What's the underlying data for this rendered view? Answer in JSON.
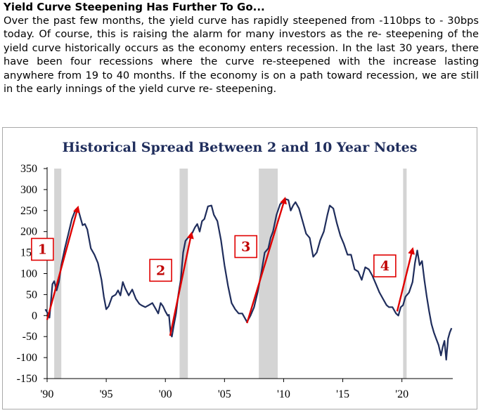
{
  "article": {
    "headline": "Yield Curve Steepening Has Further To Go...",
    "lines": [
      "Over the past few months, the yield curve has rapidly steepened from -110bps to -",
      "30bps today. Of course, this is raising the alarm for many investors as the re-",
      "steepening of the yield curve historically occurs as the economy enters recession.",
      "In the last 30 years, there have been four recessions where the curve re-steepened",
      "with the increase lasting anywhere from 19 to 40 months. If the economy is on a",
      "path toward recession, we are still in the early innings of the yield curve re-",
      "steepening."
    ]
  },
  "chart_data": {
    "type": "line",
    "title": "Historical Spread Between 2 and 10 Year Notes",
    "xlabel": "",
    "ylabel": "",
    "xlim": [
      1990,
      2024.3
    ],
    "ylim": [
      -150,
      350
    ],
    "x_tick_labels": [
      "'90",
      "'95",
      "'00",
      "'05",
      "'10",
      "'15",
      "'20"
    ],
    "x_tick_values": [
      1990,
      1995,
      2000,
      2005,
      2010,
      2015,
      2020
    ],
    "y_ticks": [
      350,
      300,
      250,
      200,
      150,
      100,
      50,
      0,
      -50,
      -100,
      -150
    ],
    "line_color": "#1f2d5c",
    "recession_color": "#d4d4d4",
    "arrow_color": "#e00000",
    "recessions": [
      {
        "start": 1990.6,
        "end": 1991.2
      },
      {
        "start": 2001.2,
        "end": 2001.9
      },
      {
        "start": 2007.9,
        "end": 2009.5
      },
      {
        "start": 2020.1,
        "end": 2020.4
      }
    ],
    "annotations": [
      {
        "label": "1",
        "from": [
          1990.0,
          -10
        ],
        "to": [
          1992.6,
          257
        ]
      },
      {
        "label": "2",
        "from": [
          2000.4,
          -48
        ],
        "to": [
          2002.2,
          195
        ]
      },
      {
        "label": "3",
        "from": [
          2006.9,
          -18
        ],
        "to": [
          2010.1,
          278
        ]
      },
      {
        "label": "4",
        "from": [
          2019.6,
          10
        ],
        "to": [
          2020.9,
          158
        ]
      }
    ],
    "series": [
      {
        "values": [
          [
            1989.85,
            15
          ],
          [
            1990.0,
            8
          ],
          [
            1990.2,
            -5
          ],
          [
            1990.45,
            75
          ],
          [
            1990.6,
            82
          ],
          [
            1990.8,
            60
          ],
          [
            1991.0,
            80
          ],
          [
            1991.2,
            120
          ],
          [
            1991.5,
            160
          ],
          [
            1991.8,
            195
          ],
          [
            1992.1,
            230
          ],
          [
            1992.4,
            252
          ],
          [
            1992.6,
            256
          ],
          [
            1992.8,
            235
          ],
          [
            1993.0,
            215
          ],
          [
            1993.2,
            218
          ],
          [
            1993.4,
            205
          ],
          [
            1993.7,
            160
          ],
          [
            1994.0,
            145
          ],
          [
            1994.3,
            125
          ],
          [
            1994.6,
            85
          ],
          [
            1994.8,
            45
          ],
          [
            1995.0,
            15
          ],
          [
            1995.2,
            22
          ],
          [
            1995.5,
            45
          ],
          [
            1995.8,
            50
          ],
          [
            1996.0,
            60
          ],
          [
            1996.2,
            48
          ],
          [
            1996.4,
            80
          ],
          [
            1996.6,
            65
          ],
          [
            1996.9,
            48
          ],
          [
            1997.2,
            62
          ],
          [
            1997.5,
            40
          ],
          [
            1997.8,
            28
          ],
          [
            1998.0,
            24
          ],
          [
            1998.3,
            20
          ],
          [
            1998.6,
            25
          ],
          [
            1998.9,
            30
          ],
          [
            1999.2,
            15
          ],
          [
            1999.4,
            5
          ],
          [
            1999.6,
            30
          ],
          [
            1999.8,
            22
          ],
          [
            2000.0,
            10
          ],
          [
            2000.2,
            0
          ],
          [
            2000.3,
            2
          ],
          [
            2000.45,
            -45
          ],
          [
            2000.55,
            -50
          ],
          [
            2000.7,
            -25
          ],
          [
            2000.9,
            5
          ],
          [
            2001.1,
            50
          ],
          [
            2001.3,
            85
          ],
          [
            2001.5,
            150
          ],
          [
            2001.7,
            178
          ],
          [
            2001.9,
            185
          ],
          [
            2002.1,
            190
          ],
          [
            2002.3,
            198
          ],
          [
            2002.5,
            210
          ],
          [
            2002.7,
            218
          ],
          [
            2002.9,
            200
          ],
          [
            2003.1,
            225
          ],
          [
            2003.3,
            230
          ],
          [
            2003.6,
            260
          ],
          [
            2003.9,
            262
          ],
          [
            2004.1,
            240
          ],
          [
            2004.4,
            225
          ],
          [
            2004.7,
            180
          ],
          [
            2005.0,
            120
          ],
          [
            2005.3,
            70
          ],
          [
            2005.6,
            30
          ],
          [
            2005.9,
            15
          ],
          [
            2006.2,
            5
          ],
          [
            2006.5,
            5
          ],
          [
            2006.9,
            -15
          ],
          [
            2007.2,
            0
          ],
          [
            2007.5,
            20
          ],
          [
            2007.8,
            55
          ],
          [
            2008.1,
            100
          ],
          [
            2008.4,
            150
          ],
          [
            2008.7,
            160
          ],
          [
            2008.9,
            185
          ],
          [
            2009.1,
            200
          ],
          [
            2009.4,
            240
          ],
          [
            2009.7,
            265
          ],
          [
            2009.9,
            270
          ],
          [
            2010.1,
            278
          ],
          [
            2010.4,
            275
          ],
          [
            2010.6,
            250
          ],
          [
            2010.8,
            262
          ],
          [
            2011.0,
            270
          ],
          [
            2011.3,
            255
          ],
          [
            2011.6,
            225
          ],
          [
            2011.9,
            195
          ],
          [
            2012.2,
            185
          ],
          [
            2012.5,
            140
          ],
          [
            2012.8,
            150
          ],
          [
            2013.1,
            180
          ],
          [
            2013.4,
            200
          ],
          [
            2013.7,
            240
          ],
          [
            2013.9,
            262
          ],
          [
            2014.2,
            255
          ],
          [
            2014.5,
            220
          ],
          [
            2014.8,
            190
          ],
          [
            2015.1,
            170
          ],
          [
            2015.4,
            145
          ],
          [
            2015.7,
            145
          ],
          [
            2016.0,
            110
          ],
          [
            2016.3,
            105
          ],
          [
            2016.6,
            85
          ],
          [
            2016.9,
            115
          ],
          [
            2017.2,
            110
          ],
          [
            2017.5,
            95
          ],
          [
            2017.8,
            75
          ],
          [
            2018.1,
            55
          ],
          [
            2018.4,
            40
          ],
          [
            2018.7,
            25
          ],
          [
            2018.9,
            20
          ],
          [
            2019.2,
            20
          ],
          [
            2019.5,
            5
          ],
          [
            2019.7,
            0
          ],
          [
            2019.9,
            20
          ],
          [
            2020.1,
            25
          ],
          [
            2020.3,
            45
          ],
          [
            2020.6,
            55
          ],
          [
            2020.9,
            80
          ],
          [
            2021.1,
            125
          ],
          [
            2021.3,
            155
          ],
          [
            2021.5,
            120
          ],
          [
            2021.7,
            130
          ],
          [
            2021.9,
            85
          ],
          [
            2022.1,
            45
          ],
          [
            2022.3,
            10
          ],
          [
            2022.5,
            -20
          ],
          [
            2022.7,
            -40
          ],
          [
            2022.9,
            -55
          ],
          [
            2023.1,
            -70
          ],
          [
            2023.3,
            -95
          ],
          [
            2023.45,
            -75
          ],
          [
            2023.6,
            -60
          ],
          [
            2023.75,
            -105
          ],
          [
            2023.9,
            -55
          ],
          [
            2024.05,
            -40
          ],
          [
            2024.2,
            -30
          ]
        ]
      }
    ]
  }
}
